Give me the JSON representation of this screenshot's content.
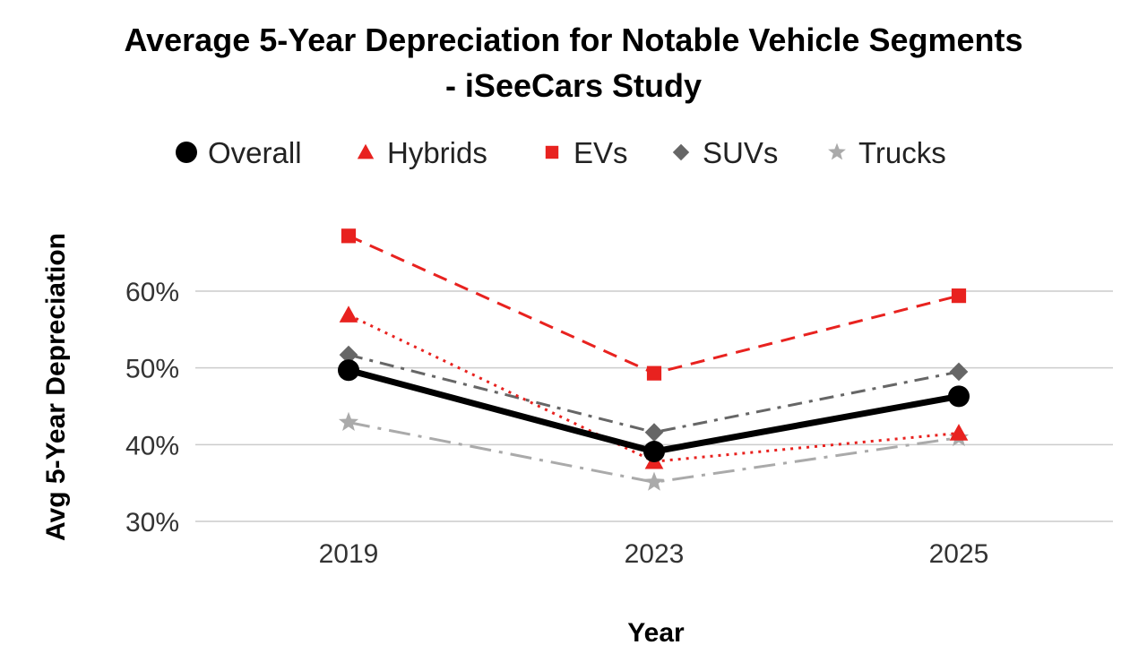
{
  "chart_data": {
    "type": "line",
    "title_line1": "Average 5-Year Depreciation for Notable Vehicle Segments",
    "title_line2": "- iSeeCars Study",
    "xlabel": "Year",
    "ylabel": "Avg 5-Year Depreciation",
    "categories": [
      "2019",
      "2023",
      "2025"
    ],
    "ylim": [
      30,
      67
    ],
    "yticks": [
      30,
      40,
      50,
      60
    ],
    "ytick_labels": [
      "30%",
      "40%",
      "50%",
      "60%"
    ],
    "grid": true,
    "legend_position": "top",
    "series": [
      {
        "name": "Overall",
        "values": [
          49.7,
          39.1,
          46.3
        ],
        "color": "#000000",
        "marker": "circle",
        "line_style": "solid"
      },
      {
        "name": "Hybrids",
        "values": [
          56.9,
          37.8,
          41.5
        ],
        "color": "#e8221f",
        "marker": "triangle",
        "line_style": "dotted"
      },
      {
        "name": "EVs",
        "values": [
          67.2,
          49.3,
          59.4
        ],
        "color": "#e8221f",
        "marker": "square",
        "line_style": "dashed"
      },
      {
        "name": "SUVs",
        "values": [
          51.7,
          41.6,
          49.5
        ],
        "color": "#666666",
        "marker": "diamond",
        "line_style": "dashdot"
      },
      {
        "name": "Trucks",
        "values": [
          42.9,
          35.1,
          40.9
        ],
        "color": "#aaaaaa",
        "marker": "star",
        "line_style": "longdashdot"
      }
    ]
  }
}
